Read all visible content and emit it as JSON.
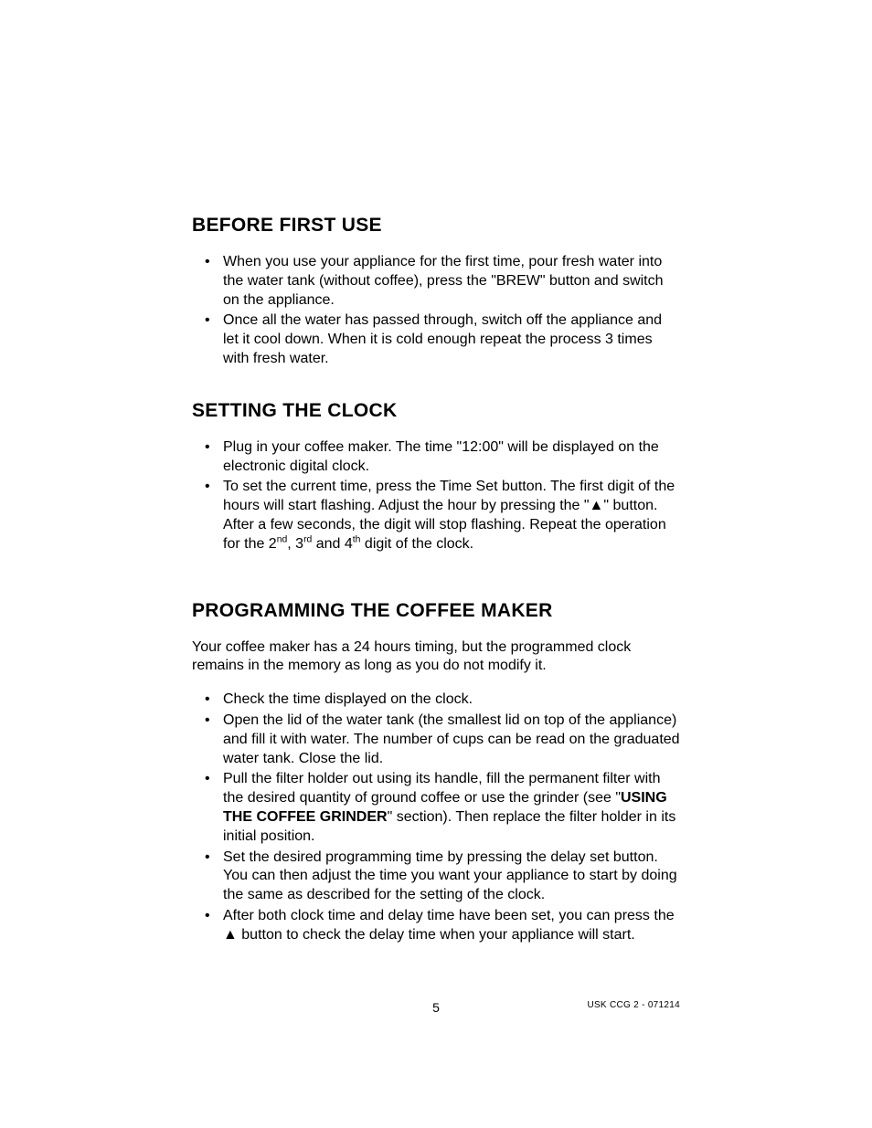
{
  "sections": {
    "before_first_use": {
      "heading": "BEFORE FIRST USE",
      "items": [
        "When you use your appliance for the first time, pour fresh water into the water tank (without coffee), press the \"BREW\" button and switch on the appliance.",
        "Once all the water has passed through, switch off the appliance and let it cool down. When it is cold enough repeat the process 3 times with fresh water."
      ]
    },
    "setting_clock": {
      "heading": "SETTING THE CLOCK",
      "items_pre": "Plug in your coffee maker. The time \"12:00\" will be displayed on the electronic digital clock.",
      "item2_a": "To set the current time, press the Time Set button. The first digit of the hours will start flashing. Adjust the hour by pressing the \"▲\" button. After a few seconds, the digit will stop flashing. Repeat the operation for the 2",
      "item2_sup1": "nd",
      "item2_b": ", 3",
      "item2_sup2": "rd",
      "item2_c": " and 4",
      "item2_sup3": "th",
      "item2_d": " digit of the clock."
    },
    "programming": {
      "heading": "PROGRAMMING THE COFFEE MAKER",
      "intro": "Your coffee maker has a 24 hours timing, but the programmed clock remains in the memory as long as you do not modify it.",
      "items": [
        "Check the time displayed on the clock.",
        "Open the lid of the water tank (the smallest lid on top of the appliance) and fill it with water. The number of cups can be read on the graduated water tank. Close the lid."
      ],
      "item3_a": "Pull the filter holder out using its handle, fill the permanent filter with the desired quantity of ground coffee or use the grinder (see \"",
      "item3_bold": "USING THE COFFEE GRINDER",
      "item3_b": "\" section). Then replace the filter holder in its initial position.",
      "items_tail": [
        "Set the desired programming time by pressing the delay set button. You can then adjust the time you want your appliance to start by doing the same as described for the setting of the clock.",
        "After both clock time and delay time have been set, you can press the ▲ button to check the delay time when your appliance will start."
      ]
    }
  },
  "footer": {
    "page_number": "5",
    "doc_id": "USK CCG 2  - 071214"
  }
}
